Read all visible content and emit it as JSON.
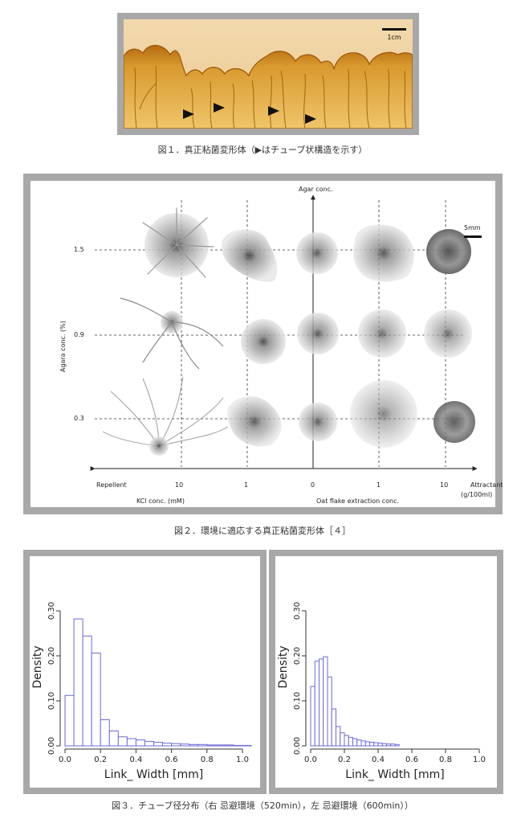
{
  "figure1": {
    "scale_bar_label": "1cm",
    "caption": "図１．真正粘菌変形体（▶はチューブ状構造を示す）",
    "marker_count": 4
  },
  "figure2": {
    "caption": "図２．環境に適応する真正粘菌変形体［４］",
    "y_axis_title": "Agar conc.",
    "y_axis_label": "Agara conc. (%)",
    "y_ticks": [
      "1.5",
      "0.9",
      "0.3"
    ],
    "x_ticks": [
      "10",
      "1",
      "0",
      "1",
      "10"
    ],
    "left_end_label": "Repellent",
    "right_end_label": "Attractant",
    "right_end_unit": "(g/100ml)",
    "left_axis_label": "KCl conc. (mM)",
    "right_axis_label": "Oat flake extraction conc.",
    "scale_bar_label": "5mm"
  },
  "figure3": {
    "caption": "図３．チューブ径分布（右 忌避環境（520min），左 忌避環境（600min））",
    "chart_data": [
      {
        "type": "bar",
        "title": "",
        "xlabel": "Link_ Width [mm]",
        "ylabel": "Density",
        "xlim": [
          0,
          1.0
        ],
        "ylim": [
          0,
          0.35
        ],
        "x_ticks": [
          "0.0",
          "0.2",
          "0.4",
          "0.6",
          "0.8",
          "1.0"
        ],
        "y_ticks": [
          "0.00",
          "0.10",
          "0.20",
          "0.30"
        ],
        "bin_width": 0.05,
        "bin_starts": [
          0.0,
          0.05,
          0.1,
          0.15,
          0.2,
          0.25,
          0.3,
          0.35,
          0.4,
          0.45,
          0.5,
          0.55,
          0.6,
          0.65,
          0.7,
          0.75,
          0.8,
          0.85,
          0.9,
          0.95,
          1.0
        ],
        "values": [
          0.112,
          0.282,
          0.244,
          0.206,
          0.058,
          0.033,
          0.02,
          0.016,
          0.013,
          0.01,
          0.008,
          0.006,
          0.005,
          0.004,
          0.003,
          0.003,
          0.002,
          0.002,
          0.002,
          0.001,
          0.001
        ]
      },
      {
        "type": "bar",
        "title": "",
        "xlabel": "Link_ Width [mm]",
        "ylabel": "Density",
        "xlim": [
          0,
          1.0
        ],
        "ylim": [
          0,
          0.35
        ],
        "x_ticks": [
          "0.0",
          "0.2",
          "0.4",
          "0.6",
          "0.8",
          "1.0"
        ],
        "y_ticks": [
          "0.00",
          "0.10",
          "0.20",
          "0.30"
        ],
        "bin_width": 0.025,
        "bin_starts": [
          0.0,
          0.025,
          0.05,
          0.075,
          0.1,
          0.125,
          0.15,
          0.175,
          0.2,
          0.225,
          0.25,
          0.275,
          0.3,
          0.325,
          0.35,
          0.375,
          0.4,
          0.425,
          0.45,
          0.475,
          0.5
        ],
        "values": [
          0.132,
          0.188,
          0.193,
          0.198,
          0.153,
          0.082,
          0.043,
          0.029,
          0.023,
          0.019,
          0.016,
          0.013,
          0.011,
          0.009,
          0.008,
          0.007,
          0.006,
          0.005,
          0.004,
          0.004,
          0.003
        ]
      }
    ]
  }
}
